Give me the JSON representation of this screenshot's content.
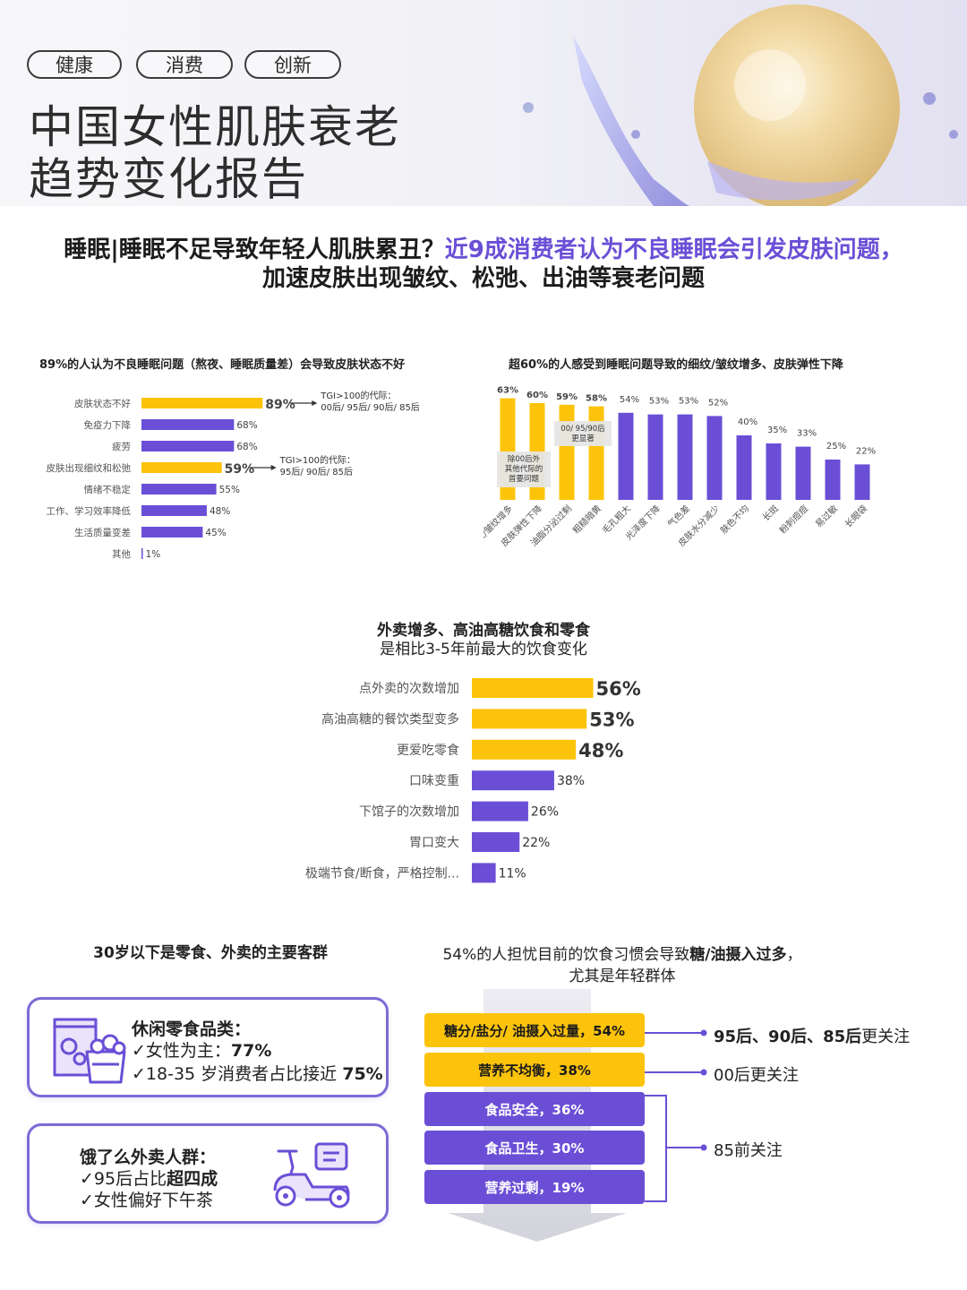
{
  "header": {
    "tags": [
      "健康",
      "消费",
      "创新"
    ],
    "title_line1": "中国女性肌肤衰老",
    "title_line2": "趋势变化报告"
  },
  "headline": {
    "part1": "睡眠|睡眠不足导致年轻人肌肤累丑？",
    "part2": "近9成消费者认为不良睡眠会引发皮肤问题，",
    "line2": "加速皮肤出现皱纹、松弛、出油等衰老问题"
  },
  "colors": {
    "yellow": "#fcc30b",
    "purple": "#6a4fd6"
  },
  "chart_data": [
    {
      "type": "bar",
      "orientation": "horizontal",
      "title": "89%的人认为不良睡眠问题（熬夜、睡眠质量差）会导致皮肤状态不好",
      "categories": [
        "皮肤状态不好",
        "免疫力下降",
        "疲劳",
        "皮肤出现细纹和松弛",
        "情绪不稳定",
        "工作、学习效率降低",
        "生活质量变差",
        "其他"
      ],
      "values": [
        89,
        68,
        68,
        59,
        55,
        48,
        45,
        1
      ],
      "highlight": [
        true,
        false,
        false,
        true,
        false,
        false,
        false,
        false
      ],
      "value_labels": [
        "89%",
        "68%",
        "68%",
        "59%",
        "55%",
        "48%",
        "45%",
        "1%"
      ],
      "annotations": [
        {
          "category": "皮肤状态不好",
          "lines": [
            "TGI>100的代际：",
            "00后/ 95后/ 90后/ 85后"
          ]
        },
        {
          "category": "皮肤出现细纹和松弛",
          "lines": [
            "TGI>100的代际：",
            "95后/ 90后/ 85后"
          ]
        }
      ]
    },
    {
      "type": "bar",
      "orientation": "vertical",
      "title": "超60%的人感受到睡眠问题导致的细纹/皱纹增多、皮肤弹性下降",
      "categories": [
        "细纹/皱纹增多",
        "皮肤弹性下降",
        "油脂分泌过剩",
        "粗糙暗黄",
        "毛孔粗大",
        "光泽度下降",
        "气色差",
        "皮肤水分减少",
        "肤色不均",
        "长斑",
        "粉刺痘痘",
        "易过敏",
        "长眼袋"
      ],
      "values": [
        63,
        60,
        59,
        58,
        54,
        53,
        53,
        52,
        40,
        35,
        33,
        25,
        22
      ],
      "highlight": [
        true,
        true,
        true,
        true,
        false,
        false,
        false,
        false,
        false,
        false,
        false,
        false,
        false
      ],
      "value_labels": [
        "63%",
        "60%",
        "59%",
        "58%",
        "54%",
        "53%",
        "53%",
        "52%",
        "40%",
        "35%",
        "33%",
        "25%",
        "22%"
      ],
      "annotations": [
        {
          "lines": [
            "除00后外",
            "其他代际的",
            "首要问题"
          ]
        },
        {
          "lines": [
            "00/ 95/90后",
            "更显著"
          ]
        }
      ]
    },
    {
      "type": "bar",
      "orientation": "horizontal",
      "title": "外卖增多、高油高糖饮食和零食",
      "subtitle": "是相比3-5年前最大的饮食变化",
      "categories": [
        "点外卖的次数增加",
        "高油高糖的餐饮类型变多",
        "更爱吃零食",
        "口味变重",
        "下馆子的次数增加",
        "胃口变大",
        "极端节食/断食，严格控制..."
      ],
      "values": [
        56,
        53,
        48,
        38,
        26,
        22,
        11
      ],
      "highlight": [
        true,
        true,
        true,
        false,
        false,
        false,
        false
      ],
      "value_labels": [
        "56%",
        "53%",
        "48%",
        "38%",
        "26%",
        "22%",
        "11%"
      ]
    }
  ],
  "consumers": {
    "title": "30岁以下是零食、外卖的主要客群",
    "snack": {
      "heading": "休闲零食品类：",
      "line1_prefix": "✓女性为主：",
      "line1_value": "77%",
      "line2_prefix": "✓18-35 岁消费者占比接近",
      "line2_value": "75%",
      "icon": "snack-bag-icon"
    },
    "delivery": {
      "heading": "饿了么外卖人群：",
      "line1_prefix": "✓95后占比",
      "line1_value": "超四成",
      "line2": "✓女性偏好下午茶",
      "icon": "delivery-scooter-icon"
    }
  },
  "worries": {
    "title_prefix": "54%的人担忧目前的饮食习惯会导致",
    "title_bold": "糖/油摄入过多",
    "title_suffix": "，",
    "title_line2": "尤其是年轻群体",
    "items": [
      "糖分/盐分/ 油摄入过量，54%",
      "营养不均衡，38%",
      "食品安全，36%",
      "食品卫生，30%",
      "营养过剩，19%"
    ],
    "concerns": [
      {
        "bold": "95后、90后、85后",
        "rest": "更关注"
      },
      {
        "bold": "",
        "rest": "00后更关注"
      },
      {
        "bold": "",
        "rest": "85前关注"
      }
    ]
  }
}
